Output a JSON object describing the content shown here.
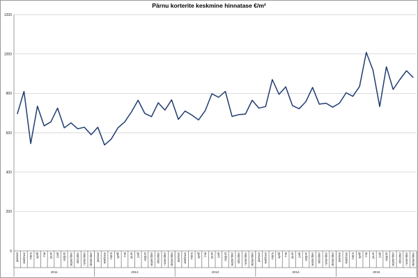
{
  "chart_data": {
    "type": "line",
    "title": "Pärnu korterite keskmine hinnatase €/m²",
    "xlabel": "",
    "ylabel": "",
    "ylim": [
      0,
      1200
    ],
    "yticks": [
      0,
      200,
      400,
      600,
      800,
      1000,
      1200
    ],
    "grid": true,
    "legend": "none",
    "line_color": "#1f3b70",
    "months": [
      "jaanuar",
      "veebruar",
      "märts",
      "aprill",
      "mai",
      "juuni",
      "juuli",
      "august",
      "september",
      "oktoober",
      "november",
      "detsember"
    ],
    "years": [
      "2011",
      "2012",
      "2013",
      "2014",
      "2015"
    ],
    "series": [
      {
        "values": [
          695,
          810,
          545,
          735,
          635,
          655,
          725,
          625,
          650,
          620,
          628,
          590,
          628,
          538,
          568,
          625,
          655,
          705,
          765,
          698,
          682,
          752,
          715,
          767,
          668,
          710,
          690,
          665,
          712,
          798,
          780,
          810,
          683,
          692,
          695,
          765,
          725,
          733,
          870,
          795,
          833,
          738,
          722,
          758,
          830,
          745,
          750,
          730,
          750,
          803,
          785,
          835,
          1008,
          918,
          733,
          935,
          820,
          870,
          915,
          880
        ]
      }
    ]
  }
}
